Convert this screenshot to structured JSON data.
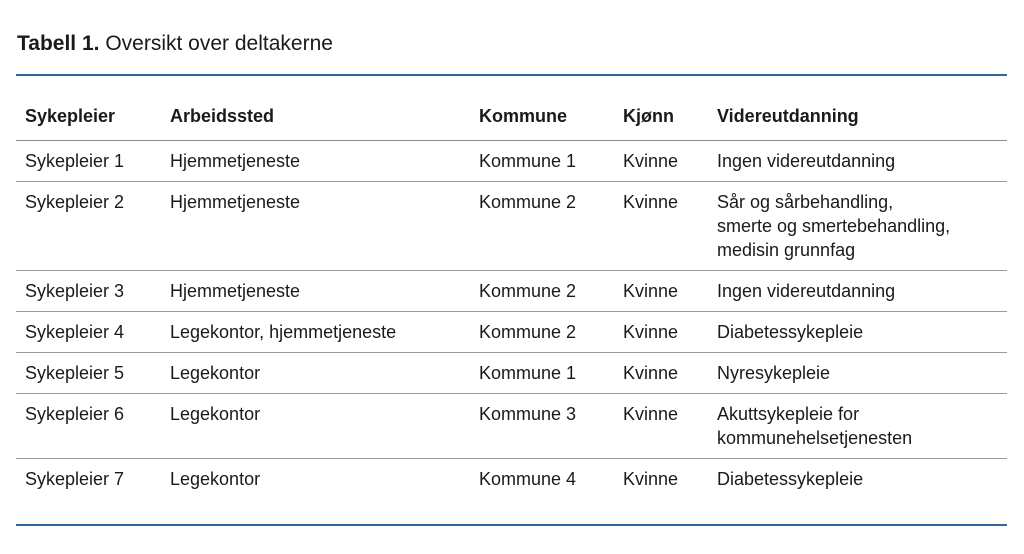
{
  "caption": {
    "label": "Tabell 1.",
    "title": "Oversikt over deltakerne"
  },
  "table": {
    "headers": [
      "Sykepleier",
      "Arbeidssted",
      "Kommune",
      "Kjønn",
      "Videreutdanning"
    ],
    "rows": [
      {
        "sykepleier": "Sykepleier 1",
        "arbeidssted": "Hjemmetjeneste",
        "kommune": "Kommune 1",
        "kjonn": "Kvinne",
        "videreutdanning": [
          "Ingen videreutdanning"
        ]
      },
      {
        "sykepleier": "Sykepleier 2",
        "arbeidssted": "Hjemmetjeneste",
        "kommune": "Kommune 2",
        "kjonn": "Kvinne",
        "videreutdanning": [
          "Sår og sårbehandling,",
          "smerte og smertebehandling,",
          "medisin grunnfag"
        ]
      },
      {
        "sykepleier": "Sykepleier 3",
        "arbeidssted": "Hjemmetjeneste",
        "kommune": "Kommune 2",
        "kjonn": "Kvinne",
        "videreutdanning": [
          "Ingen videreutdanning"
        ]
      },
      {
        "sykepleier": "Sykepleier 4",
        "arbeidssted": "Legekontor, hjemmetjeneste",
        "kommune": "Kommune 2",
        "kjonn": "Kvinne",
        "videreutdanning": [
          "Diabetessykepleie"
        ]
      },
      {
        "sykepleier": "Sykepleier 5",
        "arbeidssted": "Legekontor",
        "kommune": "Kommune 1",
        "kjonn": "Kvinne",
        "videreutdanning": [
          "Nyresykepleie"
        ]
      },
      {
        "sykepleier": "Sykepleier 6",
        "arbeidssted": "Legekontor",
        "kommune": "Kommune 3",
        "kjonn": "Kvinne",
        "videreutdanning": [
          "Akuttsykepleie for",
          "kommunehelsetjenesten"
        ]
      },
      {
        "sykepleier": "Sykepleier 7",
        "arbeidssted": "Legekontor",
        "kommune": "Kommune 4",
        "kjonn": "Kvinne",
        "videreutdanning": [
          "Diabetessykepleie"
        ]
      }
    ]
  },
  "colors": {
    "rule": "#2f6a9e",
    "row_divider": "#9a9a9a",
    "text": "#1a1a1a"
  }
}
